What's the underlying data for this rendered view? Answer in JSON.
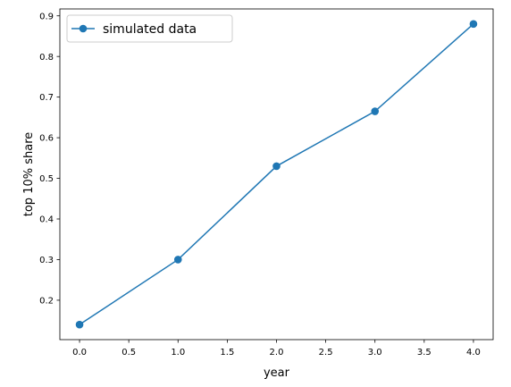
{
  "chart_data": {
    "type": "line",
    "title": "",
    "xlabel": "year",
    "ylabel": "top 10% share",
    "x": [
      0,
      1,
      2,
      3,
      4
    ],
    "series": [
      {
        "name": "simulated data",
        "values": [
          0.14,
          0.3,
          0.53,
          0.665,
          0.88
        ],
        "color": "#1f77b4",
        "marker": "circle"
      }
    ],
    "xlim": [
      -0.2,
      4.2
    ],
    "ylim": [
      0.103,
      0.917
    ],
    "xticks": [
      0.0,
      0.5,
      1.0,
      1.5,
      2.0,
      2.5,
      3.0,
      3.5,
      4.0
    ],
    "xtick_labels": [
      "0.0",
      "0.5",
      "1.0",
      "1.5",
      "2.0",
      "2.5",
      "3.0",
      "3.5",
      "4.0"
    ],
    "yticks": [
      0.2,
      0.3,
      0.4,
      0.5,
      0.6,
      0.7,
      0.8,
      0.9
    ],
    "ytick_labels": [
      "0.2",
      "0.3",
      "0.4",
      "0.5",
      "0.6",
      "0.7",
      "0.8",
      "0.9"
    ],
    "grid": false,
    "legend_position": "top-left"
  }
}
